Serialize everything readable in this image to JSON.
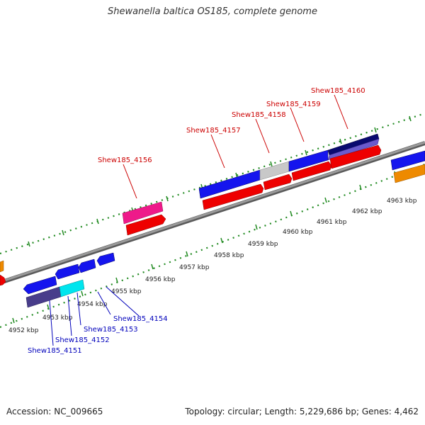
{
  "title": "Shewanella baltica OS185, complete genome",
  "footer": {
    "accession": "Accession: NC_009665",
    "summary": "Topology: circular; Length: 5,229,686 bp; Genes: 4,462"
  },
  "colors": {
    "backbone": "#888888",
    "tick": "#228b22",
    "forward_label": "#cc0000",
    "reverse_label": "#0000bb",
    "blue": "#1515ee",
    "navy": "#0a0a70",
    "slate": "#6a5acd",
    "dark_slate": "#483d8b",
    "cyan": "#00e5ee",
    "silver": "#c8c8c8",
    "red": "#ee0000",
    "magenta": "#ee1a8a",
    "orange": "#ee8a00"
  },
  "scale": {
    "unit": "kbp",
    "tick_labels": [
      {
        "text": "4952 kbp",
        "kbp": 4952
      },
      {
        "text": "4953 kbp",
        "kbp": 4953
      },
      {
        "text": "4954 kbp",
        "kbp": 4954
      },
      {
        "text": "4955 kbp",
        "kbp": 4955
      },
      {
        "text": "4956 kbp",
        "kbp": 4956
      },
      {
        "text": "4957 kbp",
        "kbp": 4957
      },
      {
        "text": "4958 kbp",
        "kbp": 4958
      },
      {
        "text": "4959 kbp",
        "kbp": 4959
      },
      {
        "text": "4960 kbp",
        "kbp": 4960
      },
      {
        "text": "4961 kbp",
        "kbp": 4961
      },
      {
        "text": "4962 kbp",
        "kbp": 4962
      },
      {
        "text": "4963 kbp",
        "kbp": 4963
      }
    ]
  },
  "genes": [
    {
      "label": "Shew185_4151",
      "strand": "reverse"
    },
    {
      "label": "Shew185_4152",
      "strand": "reverse"
    },
    {
      "label": "Shew185_4153",
      "strand": "reverse"
    },
    {
      "label": "Shew185_4154",
      "strand": "reverse"
    },
    {
      "label": "Shew185_4156",
      "strand": "forward"
    },
    {
      "label": "Shew185_4157",
      "strand": "forward"
    },
    {
      "label": "Shew185_4158",
      "strand": "forward"
    },
    {
      "label": "Shew185_4159",
      "strand": "forward"
    },
    {
      "label": "Shew185_4160",
      "strand": "forward"
    }
  ]
}
